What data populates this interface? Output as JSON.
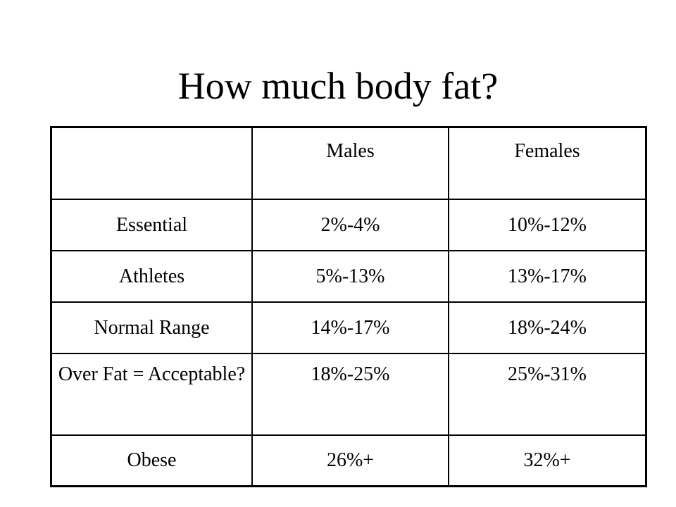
{
  "title": "How much body fat?",
  "table": {
    "headers": [
      "",
      "Males",
      "Females"
    ],
    "rows": [
      [
        "Essential",
        "2%-4%",
        "10%-12%"
      ],
      [
        "Athletes",
        "5%-13%",
        "13%-17%"
      ],
      [
        "Normal Range",
        "14%-17%",
        "18%-24%"
      ],
      [
        "Over Fat = Acceptable?",
        "18%-25%",
        "25%-31%"
      ],
      [
        "Obese",
        "26%+",
        "32%+"
      ]
    ]
  }
}
